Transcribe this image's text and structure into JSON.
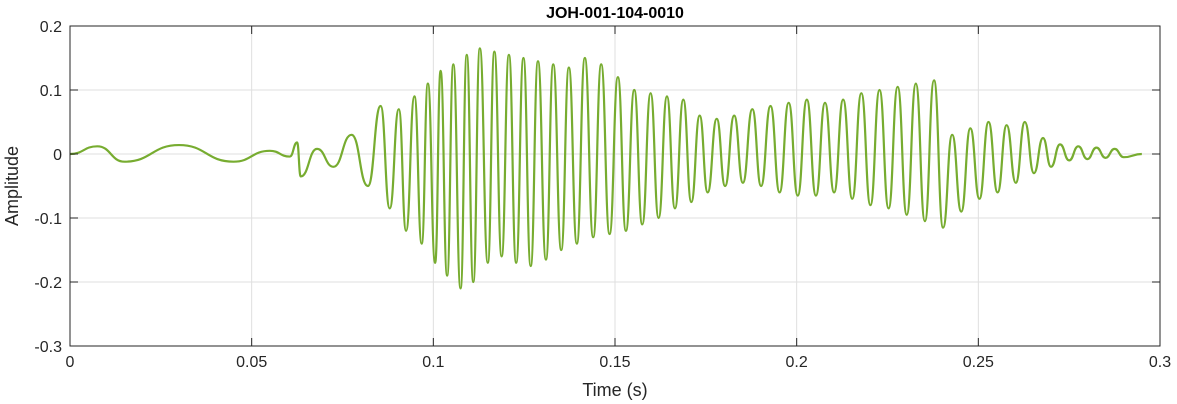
{
  "chart_data": {
    "type": "line",
    "title": "JOH-001-104-0010",
    "xlabel": "Time (s)",
    "ylabel": "Amplitude",
    "xlim": [
      0,
      0.3
    ],
    "ylim": [
      -0.3,
      0.2
    ],
    "xticks": [
      0,
      0.05,
      0.1,
      0.15,
      0.2,
      0.25,
      0.3
    ],
    "xtick_labels": [
      "0",
      "0.05",
      "0.1",
      "0.15",
      "0.2",
      "0.25",
      "0.3"
    ],
    "yticks": [
      -0.3,
      -0.2,
      -0.1,
      0,
      0.1,
      0.2
    ],
    "ytick_labels": [
      "-0.3",
      "-0.2",
      "-0.1",
      "0",
      "0.1",
      "0.2"
    ],
    "grid": true,
    "line_color": "#77ac30",
    "series": [
      {
        "x": [
          0,
          0.0075,
          0.015,
          0.03,
          0.045,
          0.055,
          0.0605,
          0.0625,
          0.0635,
          0.068,
          0.0725,
          0.0775,
          0.082,
          0.0855,
          0.088,
          0.0905,
          0.0925,
          0.0948,
          0.0968,
          0.0985,
          0.1005,
          0.102,
          0.1038,
          0.1055,
          0.1075,
          0.1092,
          0.111,
          0.1128,
          0.115,
          0.1168,
          0.1188,
          0.1208,
          0.1228,
          0.1248,
          0.1268,
          0.1288,
          0.131,
          0.133,
          0.1352,
          0.1373,
          0.1395,
          0.1417,
          0.144,
          0.1462,
          0.1485,
          0.1508,
          0.153,
          0.1553,
          0.1575,
          0.1598,
          0.162,
          0.1643,
          0.1665,
          0.1688,
          0.171,
          0.1733,
          0.1755,
          0.178,
          0.1803,
          0.1828,
          0.1852,
          0.1878,
          0.1902,
          0.1928,
          0.1953,
          0.1978,
          0.2003,
          0.2028,
          0.2053,
          0.2078,
          0.2103,
          0.2128,
          0.2153,
          0.2178,
          0.2203,
          0.2228,
          0.2253,
          0.2278,
          0.2303,
          0.2328,
          0.2353,
          0.2378,
          0.2403,
          0.2428,
          0.2453,
          0.2478,
          0.2503,
          0.2528,
          0.2553,
          0.2578,
          0.2603,
          0.2628,
          0.2653,
          0.2678,
          0.27,
          0.2725,
          0.275,
          0.2775,
          0.28,
          0.2825,
          0.285,
          0.2875,
          0.29,
          0.295
        ],
        "y": [
          0,
          0.012,
          -0.012,
          0.014,
          -0.012,
          0.005,
          -0.004,
          0.018,
          -0.035,
          0.008,
          -0.02,
          0.03,
          -0.05,
          0.075,
          -0.085,
          0.07,
          -0.12,
          0.09,
          -0.14,
          0.11,
          -0.17,
          0.13,
          -0.19,
          0.14,
          -0.21,
          0.155,
          -0.2,
          0.165,
          -0.17,
          0.16,
          -0.16,
          0.155,
          -0.17,
          0.15,
          -0.175,
          0.145,
          -0.165,
          0.14,
          -0.15,
          0.135,
          -0.14,
          0.15,
          -0.13,
          0.14,
          -0.125,
          0.12,
          -0.12,
          0.1,
          -0.11,
          0.095,
          -0.1,
          0.09,
          -0.085,
          0.085,
          -0.075,
          0.06,
          -0.06,
          0.055,
          -0.05,
          0.06,
          -0.045,
          0.07,
          -0.05,
          0.075,
          -0.06,
          0.08,
          -0.065,
          0.085,
          -0.065,
          0.08,
          -0.06,
          0.085,
          -0.07,
          0.095,
          -0.08,
          0.1,
          -0.085,
          0.105,
          -0.095,
          0.11,
          -0.105,
          0.115,
          -0.115,
          0.03,
          -0.09,
          0.04,
          -0.07,
          0.05,
          -0.06,
          0.045,
          -0.045,
          0.05,
          -0.03,
          0.025,
          -0.02,
          0.015,
          -0.01,
          0.012,
          -0.008,
          0.01,
          -0.006,
          0.008,
          -0.005,
          0
        ]
      }
    ]
  }
}
